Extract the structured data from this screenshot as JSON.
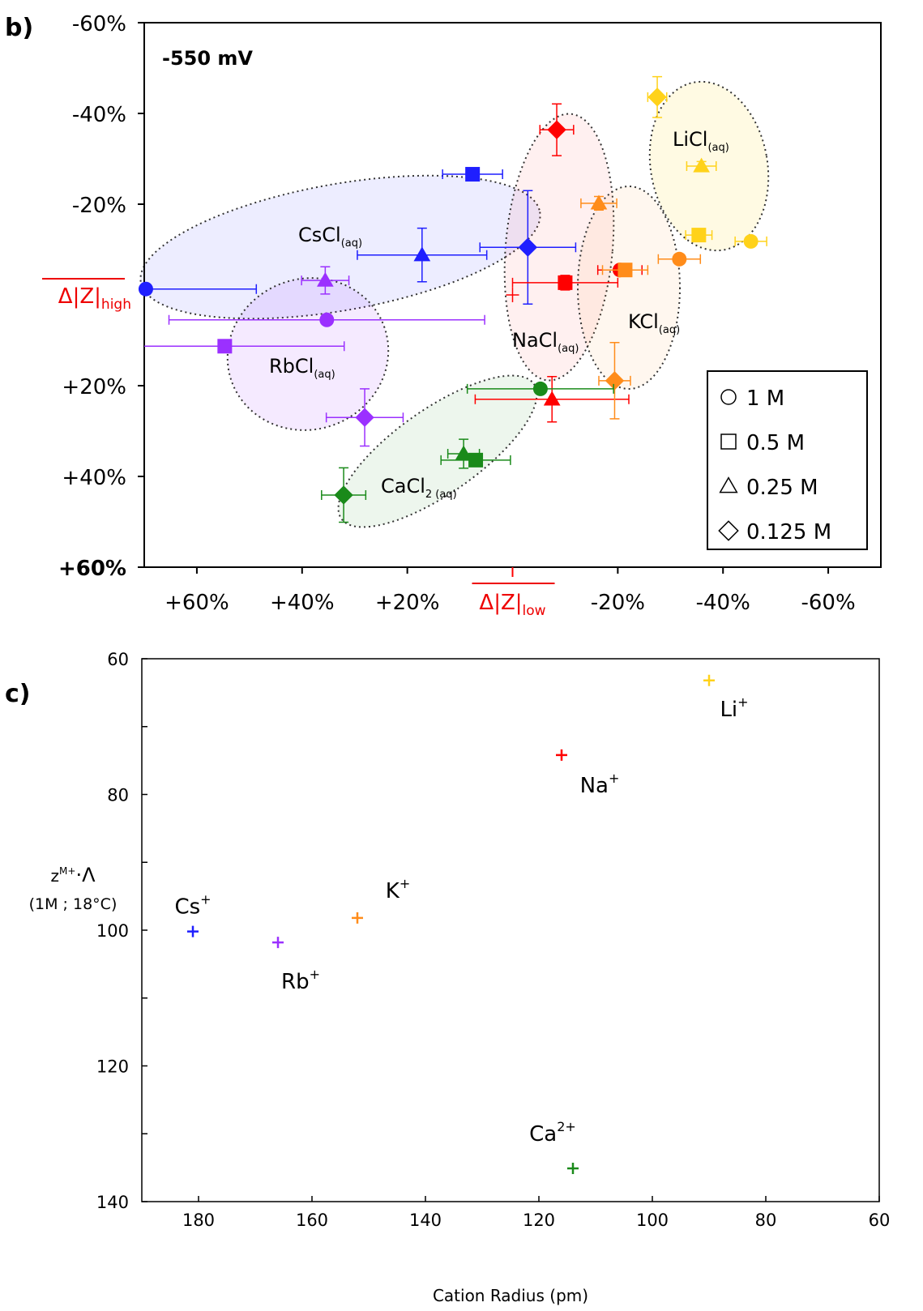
{
  "chart_data": [
    {
      "type": "scatter",
      "panel": "b)",
      "annotation": "-550 mV",
      "xlim": [
        70,
        -70
      ],
      "ylim": [
        60,
        -60
      ],
      "xticks": [
        {
          "value": 60,
          "label": "+60%"
        },
        {
          "value": 40,
          "label": "+40%"
        },
        {
          "value": 20,
          "label": "+20%"
        },
        {
          "value": -20,
          "label": "-20%"
        },
        {
          "value": -40,
          "label": "-40%"
        },
        {
          "value": -60,
          "label": "-60%"
        }
      ],
      "yticks": [
        {
          "value": -60,
          "label": "-60%"
        },
        {
          "value": -40,
          "label": "-40%"
        },
        {
          "value": -20,
          "label": "-20%"
        },
        {
          "value": 20,
          "label": "+20%"
        },
        {
          "value": 40,
          "label": "+40%"
        },
        {
          "value": 60,
          "label": "+60%"
        }
      ],
      "xlabel": "Δ|Z|",
      "xlabel_sub": "low",
      "ylabel": "Δ|Z|",
      "ylabel_sub": "high",
      "legend": [
        "1 M",
        "0.5 M",
        "0.25 M",
        "0.125 M"
      ],
      "markers": [
        "circle",
        "square",
        "triangle",
        "diamond"
      ],
      "legend_position": "lower right",
      "series": [
        {
          "name": "CsCl",
          "name_sub": "(aq)",
          "color": "#1f1fff",
          "x": [
            69.7,
            7.6,
            17.2,
            -2.9
          ],
          "y": [
            -1.3,
            -26.6,
            -8.8,
            -10.5
          ],
          "xerr": [
            21,
            5.7,
            12.3,
            9.1
          ],
          "yerr": [
            null,
            1,
            5.9,
            12.5
          ]
        },
        {
          "name": "RbCl",
          "name_sub": "(aq)",
          "color": "#9b30ff",
          "x": [
            35.3,
            54.7,
            35.6,
            28.1
          ],
          "y": [
            5.5,
            11.3,
            -3.2,
            27
          ],
          "xerr": [
            30,
            22.7,
            4.5,
            7.3
          ],
          "yerr": [
            null,
            1,
            3,
            6.3
          ]
        },
        {
          "name": "NaCl",
          "name_sub": "(aq)",
          "color": "#ff0000",
          "x": [
            -20.4,
            -10,
            -7.5,
            -8.4
          ],
          "y": [
            -5.5,
            -2.7,
            23,
            -36.4
          ],
          "xerr": [
            4.2,
            10,
            14.6,
            3.2
          ],
          "yerr": [
            null,
            1.6,
            5,
            5.7
          ]
        },
        {
          "name": "KCl",
          "name_sub": "(aq)",
          "color": "#ff8c1a",
          "x": [
            -31.7,
            -21.4,
            -16.4,
            -19.4
          ],
          "y": [
            -7.9,
            -5.5,
            -20.2,
            18.9
          ],
          "xerr": [
            4,
            4.3,
            3.4,
            3
          ],
          "yerr": [
            null,
            1,
            1.5,
            8.4
          ]
        },
        {
          "name": "LiCl",
          "name_sub": "(aq)",
          "color": "#ffd21a",
          "x": [
            -45.3,
            -35.4,
            -35.9,
            -27.5
          ],
          "y": [
            -11.8,
            -13.2,
            -28.4,
            -43.6
          ],
          "xerr": [
            3,
            2.5,
            2.8,
            1.8
          ],
          "yerr": [
            null,
            1,
            1,
            4.5
          ]
        },
        {
          "name": "CaCl",
          "name_sub": "2 (aq)",
          "color": "#1a8a1a",
          "x": [
            -5.3,
            7,
            9.3,
            32.1
          ],
          "y": [
            20.7,
            36.4,
            35,
            44.1
          ],
          "xerr": [
            13.9,
            6.6,
            3,
            4.2
          ],
          "yerr": [
            null,
            1.4,
            3.2,
            6
          ]
        }
      ]
    },
    {
      "type": "scatter",
      "panel": "c)",
      "xlabel": "Cation Radius (pm)",
      "ylabel": "z",
      "ylabel_sup": "M+",
      "ylabel_rest": "·Λ",
      "ylabel2": "(1M ; 18°C)",
      "xlim": [
        190,
        60
      ],
      "ylim": [
        140,
        60
      ],
      "xticks": [
        180,
        160,
        140,
        120,
        100,
        80,
        60
      ],
      "yticks": [
        60,
        80,
        100,
        120,
        140
      ],
      "yminor": [
        70,
        90,
        110,
        130
      ],
      "labels": [
        "Cs",
        "Rb",
        "K",
        "Na",
        "Li",
        "Ca"
      ],
      "label_sups": [
        "+",
        "+",
        "+",
        "+",
        "+",
        "2+"
      ],
      "colors": [
        "#1f1fff",
        "#9b30ff",
        "#ff8c1a",
        "#ff0000",
        "#ffd21a",
        "#1a8a1a"
      ],
      "x": [
        181,
        166,
        152,
        116,
        90,
        114
      ],
      "y": [
        100.2,
        101.8,
        98.2,
        74.2,
        63.2,
        135.1
      ]
    }
  ]
}
